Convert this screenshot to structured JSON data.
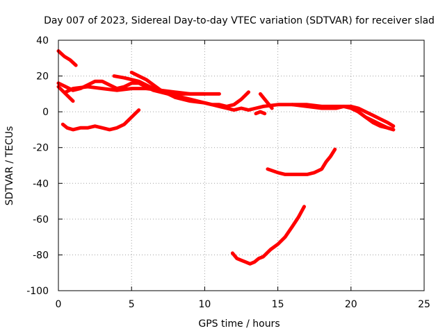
{
  "chart_data": {
    "type": "scatter",
    "title": "Day 007 of 2023, Sidereal Day-to-day VTEC variation (SDTVAR) for receiver slad",
    "xlabel": "GPS time / hours",
    "ylabel": "SDTVAR / TECUs",
    "xlim": [
      0,
      25
    ],
    "ylim": [
      -100,
      40
    ],
    "x_ticks": [
      0,
      5,
      10,
      15,
      20,
      25
    ],
    "y_ticks": [
      -100,
      -80,
      -60,
      -40,
      -20,
      0,
      20,
      40
    ],
    "x_tick_labels": [
      "0",
      "5",
      "10",
      "15",
      "20",
      "25"
    ],
    "y_tick_labels": [
      "-100",
      "-80",
      "-60",
      "-40",
      "-20",
      "0",
      "20",
      "40"
    ],
    "grid": true,
    "marker_color": "#ff0000",
    "series": [
      {
        "name": "trace-1",
        "x": [
          0.0,
          0.4,
          0.8,
          1.2
        ],
        "y": [
          34,
          31,
          29,
          26
        ]
      },
      {
        "name": "trace-2",
        "x": [
          0.0,
          0.5,
          1.0,
          1.5,
          2.0,
          2.5,
          3.0,
          3.5,
          4.0,
          4.5,
          5.0,
          5.5,
          6.0,
          6.5,
          7.0,
          7.5,
          8.0,
          8.5,
          9.0,
          9.5,
          10.0
        ],
        "y": [
          16,
          14,
          12,
          13,
          15,
          17,
          17,
          15,
          13,
          14,
          16,
          16,
          14,
          12,
          11,
          10,
          9,
          8,
          7,
          6,
          5
        ]
      },
      {
        "name": "trace-3",
        "x": [
          0.0,
          0.5,
          1.0
        ],
        "y": [
          14,
          10,
          6
        ]
      },
      {
        "name": "trace-4",
        "x": [
          0.5,
          1.0,
          2.0,
          3.0,
          4.0,
          5.0,
          6.0,
          7.0,
          8.0,
          9.0,
          10.0,
          11.0
        ],
        "y": [
          11,
          13,
          14,
          13,
          12,
          13,
          13,
          12,
          11,
          10,
          10,
          10
        ]
      },
      {
        "name": "trace-5",
        "x": [
          3.8,
          4.5,
          5.0,
          5.5,
          6.0,
          6.5,
          7.0,
          7.5,
          8.0,
          8.5,
          9.0,
          9.5,
          10.0
        ],
        "y": [
          20,
          19,
          18,
          17,
          15,
          13,
          12,
          11,
          10,
          10,
          10,
          10,
          10
        ]
      },
      {
        "name": "trace-6",
        "x": [
          5.0,
          5.5,
          6.0,
          6.5,
          7.0,
          7.5,
          8.0
        ],
        "y": [
          22,
          20,
          18,
          15,
          12,
          10,
          8
        ]
      },
      {
        "name": "trace-7",
        "x": [
          0.3,
          0.6,
          1.0,
          1.5,
          2.0,
          2.5,
          3.0,
          3.5,
          4.0,
          4.5,
          5.0,
          5.5
        ],
        "y": [
          -7,
          -9,
          -10,
          -9,
          -9,
          -8,
          -9,
          -10,
          -9,
          -7,
          -3,
          1
        ]
      },
      {
        "name": "trace-8",
        "x": [
          8.0,
          9.0,
          10.0,
          10.5,
          11.0,
          11.5,
          12.0,
          12.5,
          13.0
        ],
        "y": [
          8,
          6,
          5,
          4,
          4,
          3,
          4,
          7,
          11
        ]
      },
      {
        "name": "trace-9",
        "x": [
          10.0,
          10.5,
          11.0,
          11.5,
          12.0,
          12.5,
          13.0,
          13.5,
          14.0
        ],
        "y": [
          5,
          4,
          3,
          2,
          1,
          2,
          1,
          2,
          3
        ]
      },
      {
        "name": "trace-10",
        "x": [
          13.8,
          14.0,
          14.2,
          14.4,
          14.6
        ],
        "y": [
          10,
          8,
          6,
          4,
          2
        ]
      },
      {
        "name": "trace-11",
        "x": [
          13.5,
          13.8,
          14.1
        ],
        "y": [
          -1,
          0,
          -1
        ]
      },
      {
        "name": "trace-12",
        "x": [
          14.0,
          15.0,
          16.0,
          17.0,
          18.0,
          19.0,
          19.5,
          20.0,
          20.5,
          21.0,
          21.5,
          22.0,
          22.5,
          22.9
        ],
        "y": [
          3,
          4,
          4,
          4,
          3,
          3,
          3,
          3,
          2,
          0,
          -2,
          -4,
          -6,
          -8
        ]
      },
      {
        "name": "trace-13",
        "x": [
          16.0,
          17.0,
          18.0,
          19.0,
          19.5,
          20.0,
          20.5,
          21.0,
          21.5,
          22.0,
          22.5,
          22.9
        ],
        "y": [
          4,
          3,
          2,
          2,
          3,
          2,
          0,
          -3,
          -5,
          -7,
          -9,
          -10
        ]
      },
      {
        "name": "trace-14",
        "x": [
          20.0,
          20.5,
          21.0,
          21.5,
          22.0,
          22.5,
          22.9
        ],
        "y": [
          3,
          0,
          -3,
          -6,
          -8,
          -9,
          -10
        ]
      },
      {
        "name": "trace-15",
        "x": [
          14.3,
          15.0,
          15.5,
          16.0,
          16.5,
          17.0,
          17.5,
          18.0,
          18.3,
          18.6,
          18.9
        ],
        "y": [
          -32,
          -34,
          -35,
          -35,
          -35,
          -35,
          -34,
          -32,
          -28,
          -25,
          -21
        ]
      },
      {
        "name": "trace-16",
        "x": [
          11.9,
          12.2,
          12.5,
          12.8,
          13.1,
          13.4,
          13.7,
          14.0,
          14.5,
          15.0,
          15.5,
          16.0,
          16.4,
          16.8
        ],
        "y": [
          -79,
          -82,
          -83,
          -84,
          -85,
          -84,
          -82,
          -81,
          -77,
          -74,
          -70,
          -64,
          -59,
          -53
        ]
      }
    ]
  }
}
